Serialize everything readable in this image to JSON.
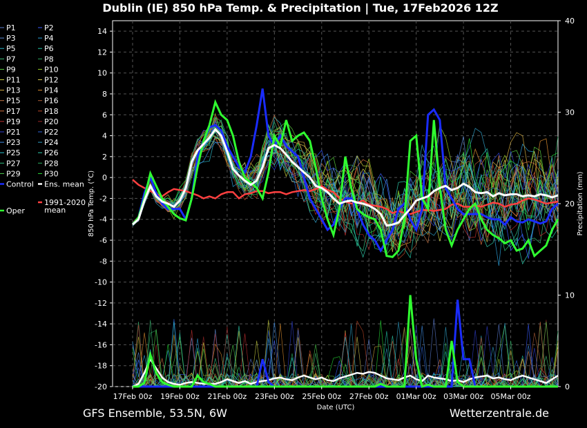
{
  "chart_data": {
    "type": "line",
    "title": "Dublin  (IE)  850 hPa Temp. & Precipitation | Tue, 17Feb2026 12Z",
    "ylabel_left": "850 hPa Temp. (°C)",
    "ylabel_right": "Precipitation (mm)",
    "xlabel": "Date (UTC)",
    "ylim_left": [
      -20,
      15
    ],
    "ylim_right": [
      0,
      40
    ],
    "yticks_left": [
      "14",
      "12",
      "10",
      "8",
      "6",
      "4",
      "2",
      "0",
      "-2",
      "-4",
      "-6",
      "-8",
      "-10",
      "-12",
      "-14",
      "-16",
      "-18",
      "-20"
    ],
    "yticks_right": [
      "40",
      "30",
      "20",
      "10",
      "0"
    ],
    "xticks": [
      "17Feb 00z",
      "19Feb 00z",
      "21Feb 00z",
      "23Feb 00z",
      "25Feb 00z",
      "27Feb 00z",
      "01Mar 00z",
      "03Mar 00z",
      "05Mar 00z"
    ],
    "grid": true,
    "footer_left": "GFS Ensemble, 53.5N, 6W",
    "footer_right": "Wetterzentrale.de",
    "legend": [
      {
        "label": "P1",
        "color": "#5a7bd0"
      },
      {
        "label": "P2",
        "color": "#3a5cff"
      },
      {
        "label": "P3",
        "color": "#5f8fd8"
      },
      {
        "label": "P4",
        "color": "#2a9fd8"
      },
      {
        "label": "P5",
        "color": "#2ab8c8"
      },
      {
        "label": "P6",
        "color": "#22c8a8"
      },
      {
        "label": "P7",
        "color": "#40c078"
      },
      {
        "label": "P8",
        "color": "#2aa860"
      },
      {
        "label": "P9",
        "color": "#5ad040"
      },
      {
        "label": "P10",
        "color": "#9ad028"
      },
      {
        "label": "P11",
        "color": "#c8d040"
      },
      {
        "label": "P12",
        "color": "#d8c850"
      },
      {
        "label": "P13",
        "color": "#d8b040"
      },
      {
        "label": "P14",
        "color": "#e09030"
      },
      {
        "label": "P15",
        "color": "#c87848"
      },
      {
        "label": "P16",
        "color": "#b06038"
      },
      {
        "label": "P17",
        "color": "#d87040"
      },
      {
        "label": "P18",
        "color": "#c04828"
      },
      {
        "label": "P19",
        "color": "#c03030"
      },
      {
        "label": "P20",
        "color": "#a02828"
      },
      {
        "label": "P21",
        "color": "#3040d0"
      },
      {
        "label": "P22",
        "color": "#3068e0"
      },
      {
        "label": "P23",
        "color": "#4090e8"
      },
      {
        "label": "P24",
        "color": "#30a0c8"
      },
      {
        "label": "P25",
        "color": "#28c0d0"
      },
      {
        "label": "P26",
        "color": "#30d0b0"
      },
      {
        "label": "P27",
        "color": "#30c080"
      },
      {
        "label": "P28",
        "color": "#28b060"
      },
      {
        "label": "P29",
        "color": "#50d050"
      },
      {
        "label": "P30",
        "color": "#28e038"
      },
      {
        "label": "Control",
        "color": "#1a2cff"
      },
      {
        "label": "Ens. mean",
        "color": "#ffffff"
      },
      {
        "label": "Oper",
        "color": "#30ff30"
      },
      {
        "label": "1991-2020 mean",
        "color": "#ff4040"
      }
    ],
    "legend_climo_lines": [
      "1991-2020",
      "mean"
    ],
    "x_steps": 73,
    "step_hours": 6,
    "ens_mean": [
      -4.5,
      -4,
      -2.2,
      -0.8,
      -1.8,
      -2.3,
      -2.5,
      -2.8,
      -2.2,
      -1,
      1.5,
      2.6,
      3.2,
      3.8,
      4.6,
      4,
      2.5,
      0.8,
      0.2,
      -0.3,
      -0.7,
      -0.3,
      1,
      2.8,
      3.1,
      2.8,
      2.2,
      1.5,
      1,
      0.5,
      0,
      -0.8,
      -1,
      -1.4,
      -2,
      -2.5,
      -2.3,
      -2.2,
      -2.4,
      -2.5,
      -2.7,
      -3,
      -3.5,
      -4.6,
      -4.5,
      -4.3,
      -3.6,
      -3,
      -2.2,
      -2,
      -1.8,
      -1.3,
      -1,
      -0.8,
      -1.2,
      -1,
      -0.6,
      -0.9,
      -1.4,
      -1.5,
      -1.4,
      -1.8,
      -1.5,
      -1.7,
      -1.6,
      -1.6,
      -1.8,
      -1.7,
      -1.8,
      -1.6,
      -1.7,
      -1.9,
      -1.7
    ],
    "climo_mean": [
      -0.2,
      -0.7,
      -1,
      -1.3,
      -1.6,
      -1.8,
      -1.4,
      -1.1,
      -1.2,
      -1.3,
      -1.5,
      -1.7,
      -2,
      -1.8,
      -2,
      -1.6,
      -1.4,
      -1.4,
      -2,
      -1.6,
      -1.5,
      -1.3,
      -1.3,
      -1.5,
      -1.4,
      -1.4,
      -1.6,
      -1.4,
      -1.3,
      -1.2,
      -1.3,
      -1.1,
      -0.8,
      -1.2,
      -1.4,
      -2,
      -2.3,
      -2.5,
      -2.4,
      -2.2,
      -2.6,
      -2.7,
      -2.8,
      -3,
      -3.4,
      -3.2,
      -3.4,
      -3.5,
      -3.3,
      -3.1,
      -3.1,
      -3.2,
      -3.1,
      -3,
      -2.6,
      -2.5,
      -2.8,
      -2.8,
      -2.7,
      -2.8,
      -2.6,
      -2.4,
      -2.5,
      -2.8,
      -2.6,
      -2.5,
      -2.2,
      -2,
      -2.1,
      -2.3,
      -2.5,
      -2.4,
      -2.3
    ],
    "oper": [
      -4.5,
      -3.8,
      -2,
      0.4,
      -0.8,
      -2,
      -2.8,
      -3.5,
      -3.9,
      -4.1,
      -2,
      1,
      3.5,
      5,
      7.2,
      6,
      5.5,
      4,
      1.5,
      0,
      -0.5,
      -1,
      -2,
      0.5,
      4,
      3,
      5.5,
      3.5,
      4,
      4.3,
      3.5,
      1,
      -2,
      -4,
      -5.5,
      -3,
      2,
      -1,
      -3,
      -3.5,
      -3.8,
      -4,
      -5,
      -7.5,
      -7.6,
      -7,
      -4,
      3.5,
      4,
      -2,
      -3,
      5.5,
      -1,
      -5,
      -6.5,
      -5,
      -4,
      -3,
      -2.5,
      -4,
      -5,
      -5.5,
      -5.8,
      -6.3,
      -6,
      -7,
      -6.8,
      -6,
      -7.5,
      -7,
      -6.5,
      -5,
      -4
    ],
    "control": [
      -4.5,
      -3.8,
      -1.5,
      0,
      -1.5,
      -2.5,
      -3,
      -3,
      -3,
      -4,
      -2,
      2,
      3.5,
      4.8,
      5,
      4.5,
      3,
      2,
      1,
      0.5,
      2,
      5,
      8.5,
      4,
      3,
      4,
      3,
      2.5,
      2,
      0,
      -2,
      -3,
      -4,
      -5,
      -4.5,
      -3,
      -2,
      -2,
      -3,
      -4.5,
      -5.5,
      -6,
      -7,
      -6,
      -5,
      -3,
      -2.5,
      -4,
      -5,
      -3,
      6,
      6.5,
      5.5,
      -1,
      -2,
      -3,
      -3.5,
      -3.5,
      -3.5,
      -3.5,
      -3.8,
      -4,
      -4,
      -4.5,
      -3.8,
      -4.2,
      -4.3,
      -4,
      -4.2,
      -4.4,
      -4.2,
      -3,
      -2.5
    ],
    "oper_precip": [
      0,
      0,
      0.4,
      3.5,
      1.5,
      0.5,
      0.2,
      0,
      0,
      0,
      0,
      1.2,
      0.5,
      0.3,
      0,
      0,
      0,
      0,
      0,
      0,
      0,
      0,
      0,
      0,
      0,
      0,
      0,
      0,
      0,
      0,
      0,
      0,
      0,
      0,
      0,
      0,
      0,
      0,
      0,
      0,
      0,
      0,
      0.3,
      0,
      0,
      0,
      0,
      10,
      3,
      0,
      0.2,
      0,
      0,
      0,
      5,
      0.5,
      0,
      0,
      0,
      0,
      0,
      0,
      0,
      0,
      0,
      0,
      0,
      0,
      0,
      0,
      0,
      0,
      0
    ],
    "control_precip": [
      0,
      0,
      0,
      0,
      0,
      0,
      0,
      0,
      0,
      0,
      0,
      0,
      0,
      0,
      0,
      0,
      0,
      0,
      0,
      0,
      0,
      0,
      3,
      0.5,
      0,
      0,
      0,
      0,
      0,
      0,
      0,
      0,
      0,
      0,
      0,
      0,
      0,
      0,
      0,
      0,
      0,
      0,
      0,
      0,
      0,
      0,
      0,
      0,
      0,
      0,
      0,
      0,
      0,
      0,
      0,
      9.5,
      3,
      3,
      0,
      0,
      0,
      0,
      0,
      0,
      0,
      0,
      0,
      0,
      0,
      0,
      0,
      0,
      0
    ],
    "mean_precip": [
      0,
      0.3,
      1.5,
      3,
      2,
      1,
      0.5,
      0.3,
      0.2,
      0.4,
      0.5,
      0.4,
      0.3,
      0.3,
      0.3,
      0.5,
      0.8,
      0.6,
      0.4,
      0.6,
      0.3,
      0.5,
      0.6,
      0.7,
      0.9,
      1,
      0.8,
      0.7,
      1,
      1.2,
      1,
      0.8,
      1,
      0.7,
      0.6,
      0.9,
      1.1,
      1.3,
      1.5,
      1.4,
      1.6,
      1.5,
      1.2,
      0.9,
      0.8,
      0.7,
      1,
      1.2,
      0.8,
      0.6,
      1.2,
      1,
      0.9,
      0.8,
      0.6,
      0.7,
      0.5,
      0.8,
      1,
      1.1,
      1.2,
      0.9,
      1,
      0.8,
      0.7,
      1,
      1.2,
      1,
      0.8,
      0.6,
      0.4,
      0.8,
      1.2
    ]
  }
}
